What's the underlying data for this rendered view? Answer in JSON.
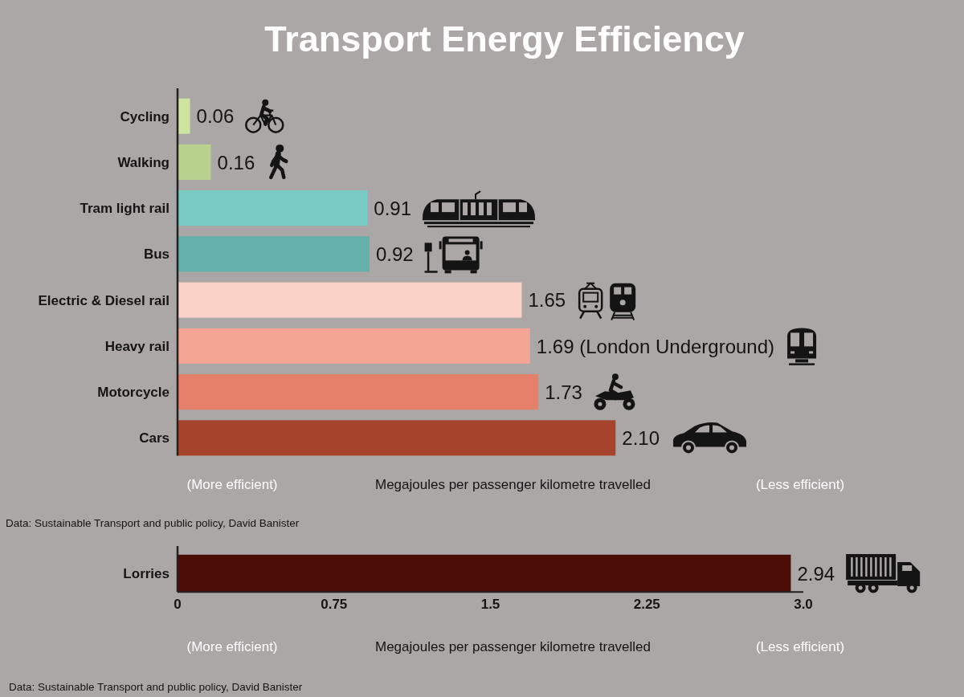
{
  "chart_data": [
    {
      "type": "bar",
      "orientation": "horizontal",
      "title": "Transport Energy Efficiency",
      "categories": [
        "Cycling",
        "Walking",
        "Tram light rail",
        "Bus",
        "Electric & Diesel rail",
        "Heavy rail",
        "Motorcycle",
        "Cars"
      ],
      "values": [
        0.06,
        0.16,
        0.91,
        0.92,
        1.65,
        1.69,
        1.73,
        2.1
      ],
      "colors": [
        "#cde3a0",
        "#b8d28e",
        "#79ccc6",
        "#63b1aa",
        "#fad2c8",
        "#f4a593",
        "#e6806a",
        "#a6432b"
      ],
      "value_labels": [
        "0.06",
        "0.16",
        "0.91",
        "0.92",
        "1.65",
        "1.69 (London Underground)",
        "1.73",
        "2.10"
      ],
      "xlim": [
        0,
        3
      ],
      "tick_labels": "y",
      "xlabel": "Megajoules per passenger kilometre travelled",
      "annotations": [
        "(More efficient)",
        "(Less efficient)",
        "Data: Sustainable Transport and public policy, David Banister"
      ]
    },
    {
      "type": "bar",
      "orientation": "horizontal",
      "categories": [
        "Lorries"
      ],
      "values": [
        2.94
      ],
      "colors": [
        "#4b0e07"
      ],
      "data_labels": true,
      "xlim": [
        0,
        3
      ],
      "xticks": [
        0,
        0.75,
        1.5,
        2.25,
        {
          "value": 3,
          "label": "3.0"
        }
      ],
      "xlabel": "Megajoules per passenger kilometre travelled",
      "annotations": [
        "(More efficient)",
        "(Less efficient)",
        "Data: Sustainable Transport and public policy, David Banister"
      ]
    }
  ]
}
